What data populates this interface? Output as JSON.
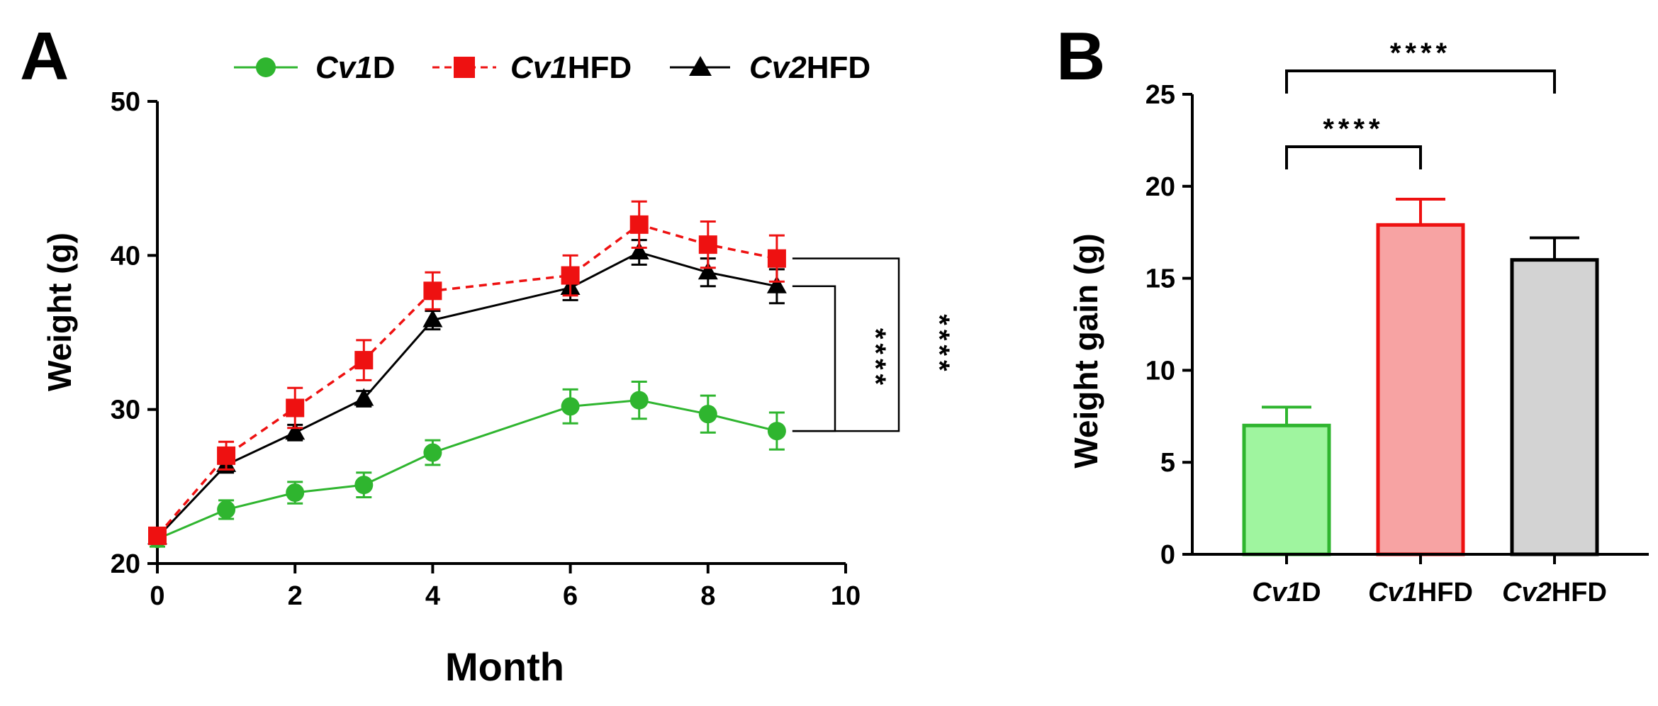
{
  "figure": {
    "panel_a_label": "A",
    "panel_b_label": "B"
  },
  "chart_data": [
    {
      "type": "line",
      "panel": "A",
      "xlabel": "Month",
      "ylabel": "Weight (g)",
      "xlim": [
        0,
        10
      ],
      "ylim": [
        20,
        50
      ],
      "xticks": [
        0,
        2,
        4,
        6,
        8,
        10
      ],
      "yticks": [
        20,
        30,
        40,
        50
      ],
      "grid": false,
      "legend": {
        "placement": "top",
        "entries": [
          {
            "prefix": "Cv1",
            "suffix": "D"
          },
          {
            "prefix": "Cv1",
            "suffix": "HFD"
          },
          {
            "prefix": "Cv2",
            "suffix": "HFD"
          }
        ]
      },
      "series": [
        {
          "name": "Cv1D",
          "color": "#2fb52f",
          "marker": "circle",
          "line": "solid",
          "x": [
            0,
            1,
            2,
            3,
            4,
            6,
            7,
            8,
            9
          ],
          "y": [
            21.6,
            23.5,
            24.6,
            25.1,
            27.2,
            30.2,
            30.6,
            29.7,
            28.6
          ],
          "err": [
            0.5,
            0.6,
            0.7,
            0.8,
            0.8,
            1.1,
            1.2,
            1.2,
            1.2
          ]
        },
        {
          "name": "Cv1HFD",
          "color": "#ee1111",
          "marker": "square",
          "line": "dashed",
          "x": [
            0,
            1,
            2,
            3,
            4,
            6,
            7,
            8,
            9
          ],
          "y": [
            21.8,
            27.0,
            30.1,
            33.2,
            37.7,
            38.7,
            42.0,
            40.7,
            39.8
          ],
          "err": [
            0.4,
            0.9,
            1.3,
            1.3,
            1.2,
            1.3,
            1.5,
            1.5,
            1.5
          ]
        },
        {
          "name": "Cv2HFD",
          "color": "#000000",
          "marker": "triangle",
          "line": "solid",
          "x": [
            0,
            1,
            2,
            3,
            4,
            6,
            7,
            8,
            9
          ],
          "y": [
            21.7,
            26.4,
            28.5,
            30.7,
            35.8,
            37.9,
            40.2,
            38.9,
            38.0
          ],
          "err": [
            0.4,
            0.5,
            0.5,
            0.5,
            0.6,
            0.8,
            0.8,
            0.9,
            1.1
          ]
        }
      ],
      "annotations": [
        {
          "label": "****",
          "from": "Cv2HFD",
          "to": "Cv1D"
        },
        {
          "label": "****",
          "from": "Cv1HFD",
          "to": "Cv1D"
        }
      ]
    },
    {
      "type": "bar",
      "panel": "B",
      "ylabel": "Weight gain (g)",
      "ylim": [
        0,
        25
      ],
      "yticks": [
        0,
        5,
        10,
        15,
        20,
        25
      ],
      "grid": false,
      "categories": [
        {
          "prefix": "Cv1",
          "suffix": "D"
        },
        {
          "prefix": "Cv1",
          "suffix": "HFD"
        },
        {
          "prefix": "Cv2",
          "suffix": "HFD"
        }
      ],
      "values": [
        7.0,
        17.9,
        16.0
      ],
      "err": [
        1.0,
        1.4,
        1.2
      ],
      "fill_colors": [
        "#9ff59f",
        "#f7a3a3",
        "#d3d3d3"
      ],
      "edge_colors": [
        "#2fb52f",
        "#ee1111",
        "#000000"
      ],
      "annotations": [
        {
          "label": "****",
          "from": 0,
          "to": 1
        },
        {
          "label": "****",
          "from": 0,
          "to": 2
        }
      ]
    }
  ]
}
